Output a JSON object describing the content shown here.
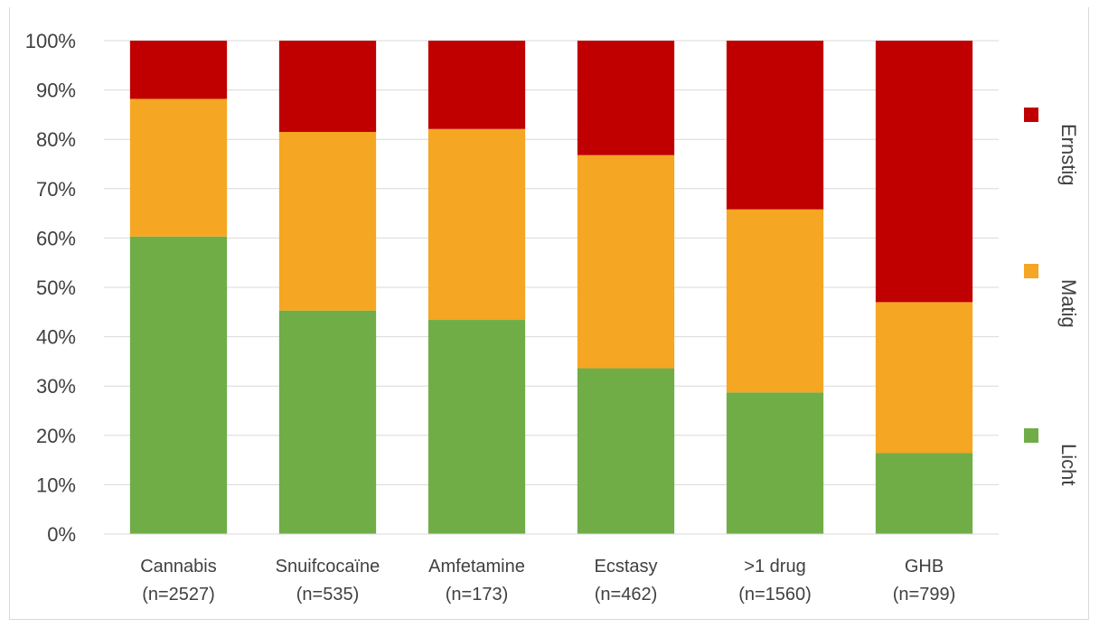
{
  "chart_data": {
    "type": "bar",
    "stacked": true,
    "percent": true,
    "categories": [
      "Cannabis",
      "Snuifcocaïne",
      "Amfetamine",
      "Ecstasy",
      ">1 drug",
      "GHB"
    ],
    "category_sublabels": [
      "(n=2527)",
      "(n=535)",
      "(n=173)",
      "(n=462)",
      "(n=1560)",
      "(n=799)"
    ],
    "series": [
      {
        "name": "Licht",
        "color": "#70ad47",
        "values": [
          60.3,
          45.3,
          43.4,
          33.6,
          28.7,
          16.4
        ]
      },
      {
        "name": "Matig",
        "color": "#f5a623",
        "values": [
          27.9,
          36.2,
          38.7,
          43.2,
          37.1,
          30.6
        ]
      },
      {
        "name": "Ernstig",
        "color": "#c00000",
        "values": [
          11.8,
          18.5,
          17.9,
          23.2,
          34.2,
          53.0
        ]
      }
    ],
    "ylim": [
      0,
      100
    ],
    "yticks": [
      "0%",
      "10%",
      "20%",
      "30%",
      "40%",
      "50%",
      "60%",
      "70%",
      "80%",
      "90%",
      "100%"
    ],
    "grid": true,
    "legend_position": "right"
  }
}
